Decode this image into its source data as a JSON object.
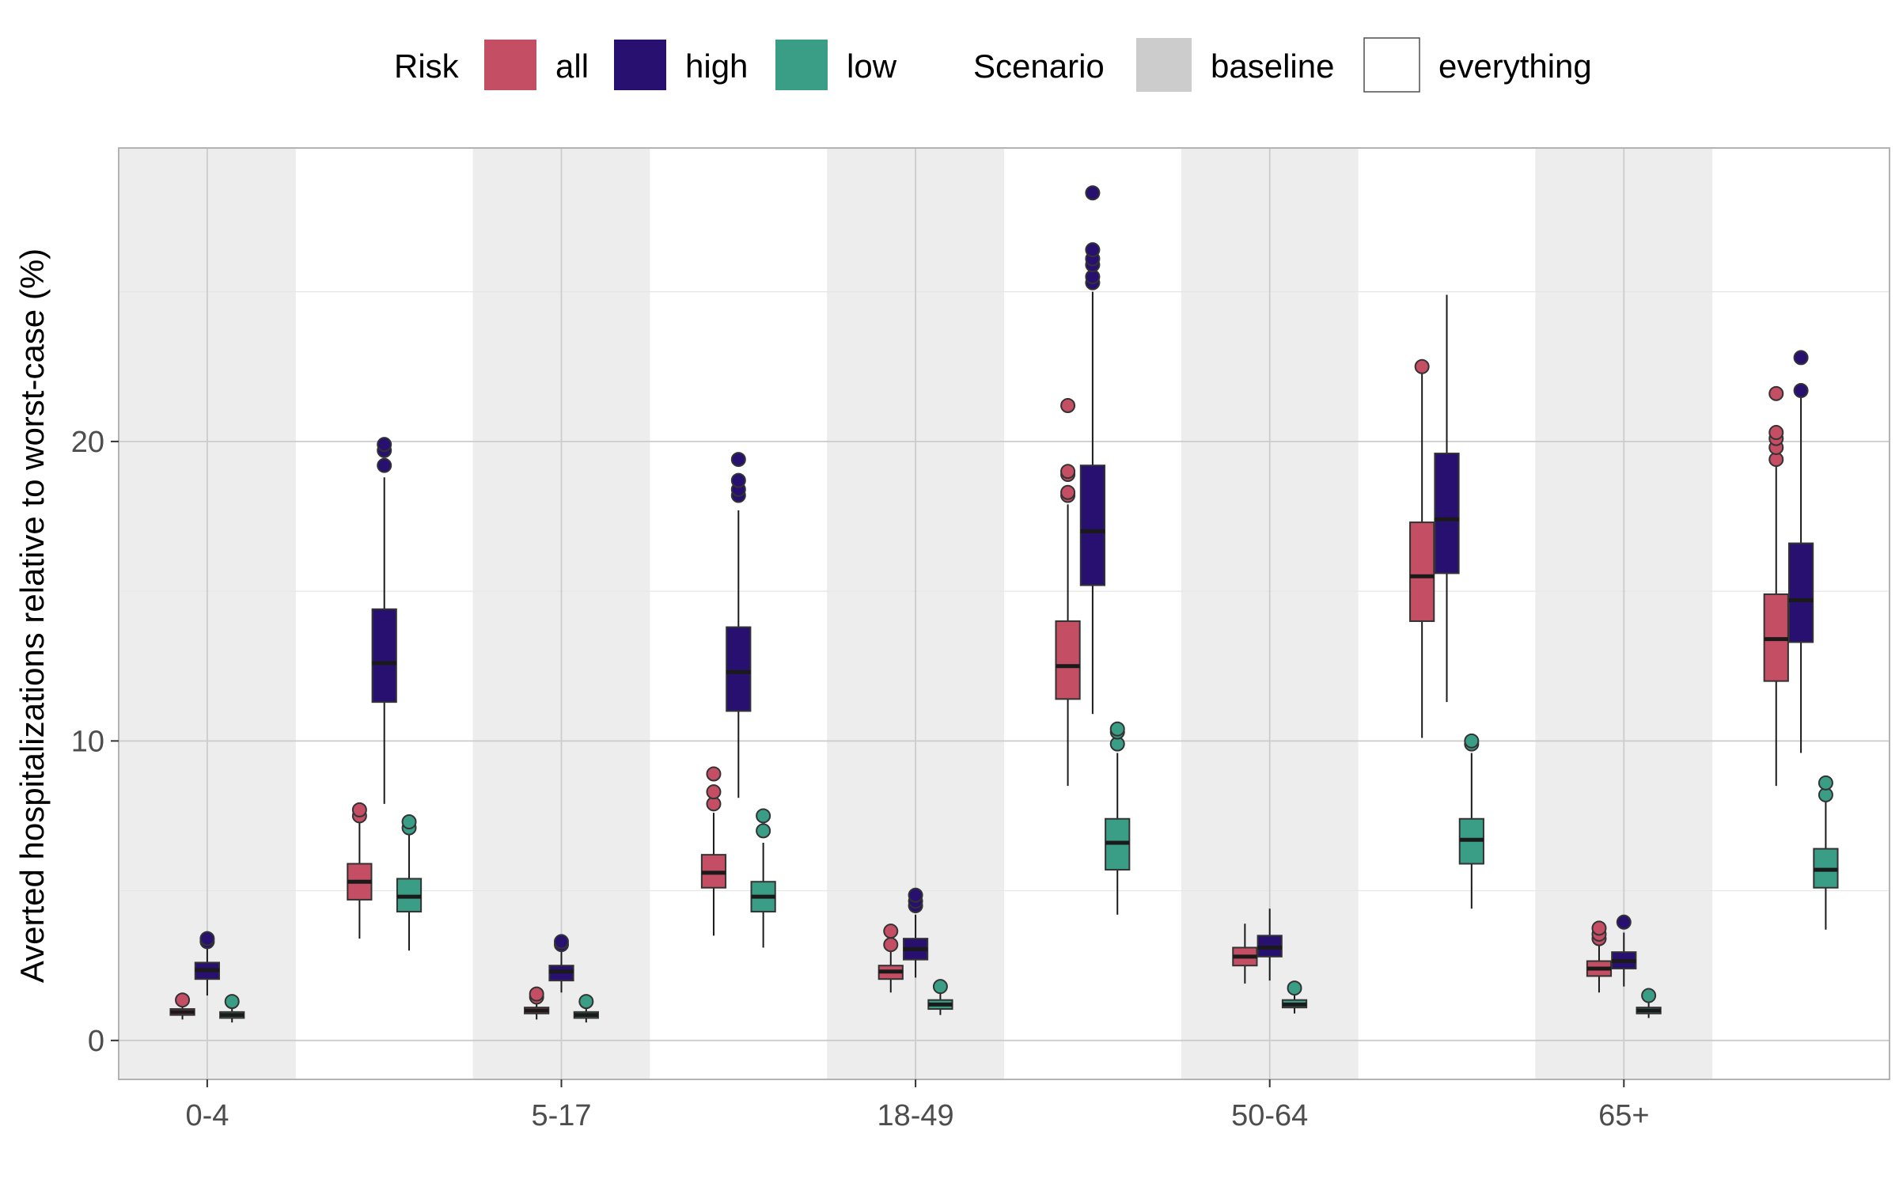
{
  "chart_data": {
    "type": "boxplot",
    "xlabel": "",
    "ylabel": "Averted hospitalizations relative to worst-case (%)",
    "ylim": [
      -1.3,
      29.8
    ],
    "yticks": [
      0,
      10,
      20
    ],
    "y_minor_ticks": [
      5,
      15,
      25
    ],
    "grid": true,
    "legend_position": "top",
    "categories": [
      "0-4",
      "5-17",
      "18-49",
      "50-64",
      "65+"
    ],
    "legend": {
      "risk_title": "Risk",
      "risk": [
        {
          "name": "all",
          "color": "#c44e63"
        },
        {
          "name": "high",
          "color": "#27106f"
        },
        {
          "name": "low",
          "color": "#3a9e86"
        }
      ],
      "scenario_title": "Scenario",
      "scenario": [
        {
          "name": "baseline",
          "color": "#cccccc"
        },
        {
          "name": "everything",
          "color": "#ffffff"
        }
      ]
    },
    "groups": [
      {
        "category": "0-4",
        "scenario": "baseline",
        "boxes": [
          {
            "risk": "all",
            "min": 0.7,
            "q1": 0.85,
            "median": 0.95,
            "q3": 1.05,
            "max": 1.2,
            "outliers": [
              1.35
            ]
          },
          {
            "risk": "high",
            "min": 1.5,
            "q1": 2.05,
            "median": 2.35,
            "q3": 2.6,
            "max": 3.1,
            "outliers": [
              3.3,
              3.4
            ]
          },
          {
            "risk": "low",
            "min": 0.6,
            "q1": 0.75,
            "median": 0.85,
            "q3": 0.95,
            "max": 1.1,
            "outliers": [
              1.3
            ]
          }
        ]
      },
      {
        "category": "0-4",
        "scenario": "everything",
        "boxes": [
          {
            "risk": "all",
            "min": 3.4,
            "q1": 4.7,
            "median": 5.3,
            "q3": 5.9,
            "max": 7.3,
            "outliers": [
              7.5,
              7.7
            ]
          },
          {
            "risk": "high",
            "min": 7.9,
            "q1": 11.3,
            "median": 12.6,
            "q3": 14.4,
            "max": 18.8,
            "outliers": [
              19.2,
              19.7,
              19.9
            ]
          },
          {
            "risk": "low",
            "min": 3.0,
            "q1": 4.3,
            "median": 4.8,
            "q3": 5.4,
            "max": 6.9,
            "outliers": [
              7.1,
              7.3
            ]
          }
        ]
      },
      {
        "category": "5-17",
        "scenario": "baseline",
        "boxes": [
          {
            "risk": "all",
            "min": 0.7,
            "q1": 0.9,
            "median": 1.0,
            "q3": 1.1,
            "max": 1.3,
            "outliers": [
              1.45,
              1.55
            ]
          },
          {
            "risk": "high",
            "min": 1.6,
            "q1": 2.0,
            "median": 2.3,
            "q3": 2.5,
            "max": 3.0,
            "outliers": [
              3.2,
              3.3
            ]
          },
          {
            "risk": "low",
            "min": 0.6,
            "q1": 0.75,
            "median": 0.85,
            "q3": 0.95,
            "max": 1.1,
            "outliers": [
              1.3
            ]
          }
        ]
      },
      {
        "category": "5-17",
        "scenario": "everything",
        "boxes": [
          {
            "risk": "all",
            "min": 3.5,
            "q1": 5.1,
            "median": 5.6,
            "q3": 6.2,
            "max": 7.6,
            "outliers": [
              7.9,
              8.3,
              8.9
            ]
          },
          {
            "risk": "high",
            "min": 8.1,
            "q1": 11.0,
            "median": 12.3,
            "q3": 13.8,
            "max": 17.7,
            "outliers": [
              18.2,
              18.4,
              18.7,
              19.4
            ]
          },
          {
            "risk": "low",
            "min": 3.1,
            "q1": 4.3,
            "median": 4.8,
            "q3": 5.3,
            "max": 6.6,
            "outliers": [
              7.0,
              7.5
            ]
          }
        ]
      },
      {
        "category": "18-49",
        "scenario": "baseline",
        "boxes": [
          {
            "risk": "all",
            "min": 1.6,
            "q1": 2.05,
            "median": 2.3,
            "q3": 2.5,
            "max": 3.0,
            "outliers": [
              3.2,
              3.65
            ]
          },
          {
            "risk": "high",
            "min": 2.1,
            "q1": 2.7,
            "median": 3.05,
            "q3": 3.4,
            "max": 4.2,
            "outliers": [
              4.5,
              4.65,
              4.85
            ]
          },
          {
            "risk": "low",
            "min": 0.85,
            "q1": 1.05,
            "median": 1.2,
            "q3": 1.35,
            "max": 1.6,
            "outliers": [
              1.8
            ]
          }
        ]
      },
      {
        "category": "18-49",
        "scenario": "everything",
        "boxes": [
          {
            "risk": "all",
            "min": 8.5,
            "q1": 11.4,
            "median": 12.5,
            "q3": 14.0,
            "max": 17.9,
            "outliers": [
              18.2,
              18.3,
              18.9,
              19.0,
              21.2
            ]
          },
          {
            "risk": "high",
            "min": 10.9,
            "q1": 15.2,
            "median": 17.0,
            "q3": 19.2,
            "max": 25.0,
            "outliers": [
              25.3,
              25.5,
              25.9,
              26.1,
              26.4,
              28.3
            ]
          },
          {
            "risk": "low",
            "min": 4.2,
            "q1": 5.7,
            "median": 6.6,
            "q3": 7.4,
            "max": 9.6,
            "outliers": [
              9.9,
              10.3,
              10.4
            ]
          }
        ]
      },
      {
        "category": "50-64",
        "scenario": "baseline",
        "boxes": [
          {
            "risk": "all",
            "min": 1.9,
            "q1": 2.5,
            "median": 2.8,
            "q3": 3.1,
            "max": 3.9,
            "outliers": []
          },
          {
            "risk": "high",
            "min": 2.0,
            "q1": 2.8,
            "median": 3.1,
            "q3": 3.5,
            "max": 4.4,
            "outliers": []
          },
          {
            "risk": "low",
            "min": 0.9,
            "q1": 1.1,
            "median": 1.2,
            "q3": 1.35,
            "max": 1.55,
            "outliers": [
              1.75
            ]
          }
        ]
      },
      {
        "category": "50-64",
        "scenario": "everything",
        "boxes": [
          {
            "risk": "all",
            "min": 10.1,
            "q1": 14.0,
            "median": 15.5,
            "q3": 17.3,
            "max": 22.3,
            "outliers": [
              22.5
            ]
          },
          {
            "risk": "high",
            "min": 11.3,
            "q1": 15.6,
            "median": 17.4,
            "q3": 19.6,
            "max": 24.9,
            "outliers": []
          },
          {
            "risk": "low",
            "min": 4.4,
            "q1": 5.9,
            "median": 6.7,
            "q3": 7.4,
            "max": 9.6,
            "outliers": [
              9.9,
              10.0
            ]
          }
        ]
      },
      {
        "category": "65+",
        "scenario": "baseline",
        "boxes": [
          {
            "risk": "all",
            "min": 1.6,
            "q1": 2.15,
            "median": 2.4,
            "q3": 2.65,
            "max": 3.2,
            "outliers": [
              3.4,
              3.55,
              3.75
            ]
          },
          {
            "risk": "high",
            "min": 1.8,
            "q1": 2.4,
            "median": 2.65,
            "q3": 2.95,
            "max": 3.6,
            "outliers": [
              3.95
            ]
          },
          {
            "risk": "low",
            "min": 0.75,
            "q1": 0.9,
            "median": 1.0,
            "q3": 1.1,
            "max": 1.3,
            "outliers": [
              1.5
            ]
          }
        ]
      },
      {
        "category": "65+",
        "scenario": "everything",
        "boxes": [
          {
            "risk": "all",
            "min": 8.5,
            "q1": 12.0,
            "median": 13.4,
            "q3": 14.9,
            "max": 19.2,
            "outliers": [
              19.4,
              19.8,
              20.1,
              20.3,
              21.6
            ]
          },
          {
            "risk": "high",
            "min": 9.6,
            "q1": 13.3,
            "median": 14.7,
            "q3": 16.6,
            "max": 21.5,
            "outliers": [
              21.7,
              22.8
            ]
          },
          {
            "risk": "low",
            "min": 3.7,
            "q1": 5.1,
            "median": 5.7,
            "q3": 6.4,
            "max": 8.0,
            "outliers": [
              8.2,
              8.6
            ]
          }
        ]
      }
    ]
  }
}
